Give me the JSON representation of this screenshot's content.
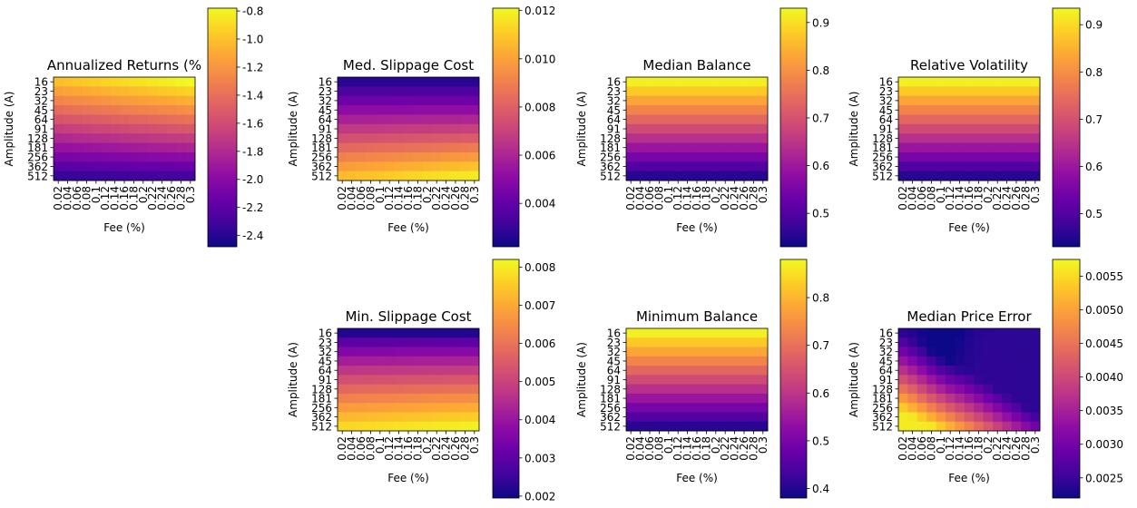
{
  "colormap": "plasma",
  "chart_data": [
    {
      "type": "heatmap",
      "title": "Annualized Returns (%",
      "xlabel": "Fee (%)",
      "ylabel": "Amplitude (A)",
      "x_ticks": [
        "0.02",
        "0.04",
        "0.06",
        "0.08",
        "0.1",
        "0.12",
        "0.14",
        "0.16",
        "0.18",
        "0.2",
        "0.22",
        "0.24",
        "0.26",
        "0.28",
        "0.3"
      ],
      "y_ticks": [
        "16",
        "23",
        "32",
        "45",
        "64",
        "91",
        "128",
        "181",
        "256",
        "362",
        "512"
      ],
      "colorbar_ticks": [
        "-0.8",
        "-1.0",
        "-1.2",
        "-1.4",
        "-1.6",
        "-1.8",
        "-2.0",
        "-2.2",
        "-2.4"
      ],
      "vmin": -2.48,
      "vmax": -0.78,
      "pattern": "returns"
    },
    {
      "type": "heatmap",
      "title": "Med. Slippage Cost",
      "xlabel": "Fee (%)",
      "ylabel": "Amplitude (A)",
      "x_ticks": [
        "0.02",
        "0.04",
        "0.06",
        "0.08",
        "0.1",
        "0.12",
        "0.14",
        "0.16",
        "0.18",
        "0.2",
        "0.22",
        "0.24",
        "0.26",
        "0.28",
        "0.3"
      ],
      "y_ticks": [
        "16",
        "23",
        "32",
        "45",
        "64",
        "91",
        "128",
        "181",
        "256",
        "362",
        "512"
      ],
      "colorbar_ticks": [
        "0.004",
        "0.006",
        "0.008",
        "0.010",
        "0.012"
      ],
      "vmin": 0.0022,
      "vmax": 0.0121,
      "pattern": "slippage"
    },
    {
      "type": "heatmap",
      "title": "Median Balance",
      "xlabel": "Fee (%)",
      "ylabel": "Amplitude (A)",
      "x_ticks": [
        "0.02",
        "0.04",
        "0.06",
        "0.08",
        "0.1",
        "0.12",
        "0.14",
        "0.16",
        "0.18",
        "0.2",
        "0.22",
        "0.24",
        "0.26",
        "0.28",
        "0.3"
      ],
      "y_ticks": [
        "16",
        "23",
        "32",
        "45",
        "64",
        "91",
        "128",
        "181",
        "256",
        "362",
        "512"
      ],
      "colorbar_ticks": [
        "0.5",
        "0.6",
        "0.7",
        "0.8",
        "0.9"
      ],
      "vmin": 0.43,
      "vmax": 0.93,
      "pattern": "balance"
    },
    {
      "type": "heatmap",
      "title": "Relative Volatility",
      "xlabel": "Fee (%)",
      "ylabel": "Amplitude (A)",
      "x_ticks": [
        "0.02",
        "0.04",
        "0.06",
        "0.08",
        "0.1",
        "0.12",
        "0.14",
        "0.16",
        "0.18",
        "0.2",
        "0.22",
        "0.24",
        "0.26",
        "0.28",
        "0.3"
      ],
      "y_ticks": [
        "16",
        "23",
        "32",
        "45",
        "64",
        "91",
        "128",
        "181",
        "256",
        "362",
        "512"
      ],
      "colorbar_ticks": [
        "0.5",
        "0.6",
        "0.7",
        "0.8",
        "0.9"
      ],
      "vmin": 0.43,
      "vmax": 0.935,
      "pattern": "balance"
    },
    {
      "type": "heatmap",
      "title": "Min. Slippage Cost",
      "xlabel": "Fee (%)",
      "ylabel": "Amplitude (A)",
      "x_ticks": [
        "0.02",
        "0.04",
        "0.06",
        "0.08",
        "0.1",
        "0.12",
        "0.14",
        "0.16",
        "0.18",
        "0.2",
        "0.22",
        "0.24",
        "0.26",
        "0.28",
        "0.3"
      ],
      "y_ticks": [
        "16",
        "23",
        "32",
        "45",
        "64",
        "91",
        "128",
        "181",
        "256",
        "362",
        "512"
      ],
      "colorbar_ticks": [
        "0.002",
        "0.003",
        "0.004",
        "0.005",
        "0.006",
        "0.007",
        "0.008"
      ],
      "vmin": 0.00195,
      "vmax": 0.0082,
      "pattern": "minslip"
    },
    {
      "type": "heatmap",
      "title": "Minimum Balance",
      "xlabel": "Fee (%)",
      "ylabel": "Amplitude (A)",
      "x_ticks": [
        "0.02",
        "0.04",
        "0.06",
        "0.08",
        "0.1",
        "0.12",
        "0.14",
        "0.16",
        "0.18",
        "0.2",
        "0.22",
        "0.24",
        "0.26",
        "0.28",
        "0.3"
      ],
      "y_ticks": [
        "16",
        "23",
        "32",
        "45",
        "64",
        "91",
        "128",
        "181",
        "256",
        "362",
        "512"
      ],
      "colorbar_ticks": [
        "0.4",
        "0.5",
        "0.6",
        "0.7",
        "0.8"
      ],
      "vmin": 0.38,
      "vmax": 0.88,
      "pattern": "balance"
    },
    {
      "type": "heatmap",
      "title": "Median Price Error",
      "xlabel": "Fee (%)",
      "ylabel": "Amplitude (A)",
      "x_ticks": [
        "0.02",
        "0.04",
        "0.06",
        "0.08",
        "0.1",
        "0.12",
        "0.14",
        "0.16",
        "0.18",
        "0.2",
        "0.22",
        "0.24",
        "0.26",
        "0.28",
        "0.3"
      ],
      "y_ticks": [
        "16",
        "23",
        "32",
        "45",
        "64",
        "91",
        "128",
        "181",
        "256",
        "362",
        "512"
      ],
      "colorbar_ticks": [
        "0.0025",
        "0.0030",
        "0.0035",
        "0.0040",
        "0.0045",
        "0.0050",
        "0.0055"
      ],
      "vmin": 0.0022,
      "vmax": 0.00575,
      "pattern": "priceerr"
    }
  ]
}
